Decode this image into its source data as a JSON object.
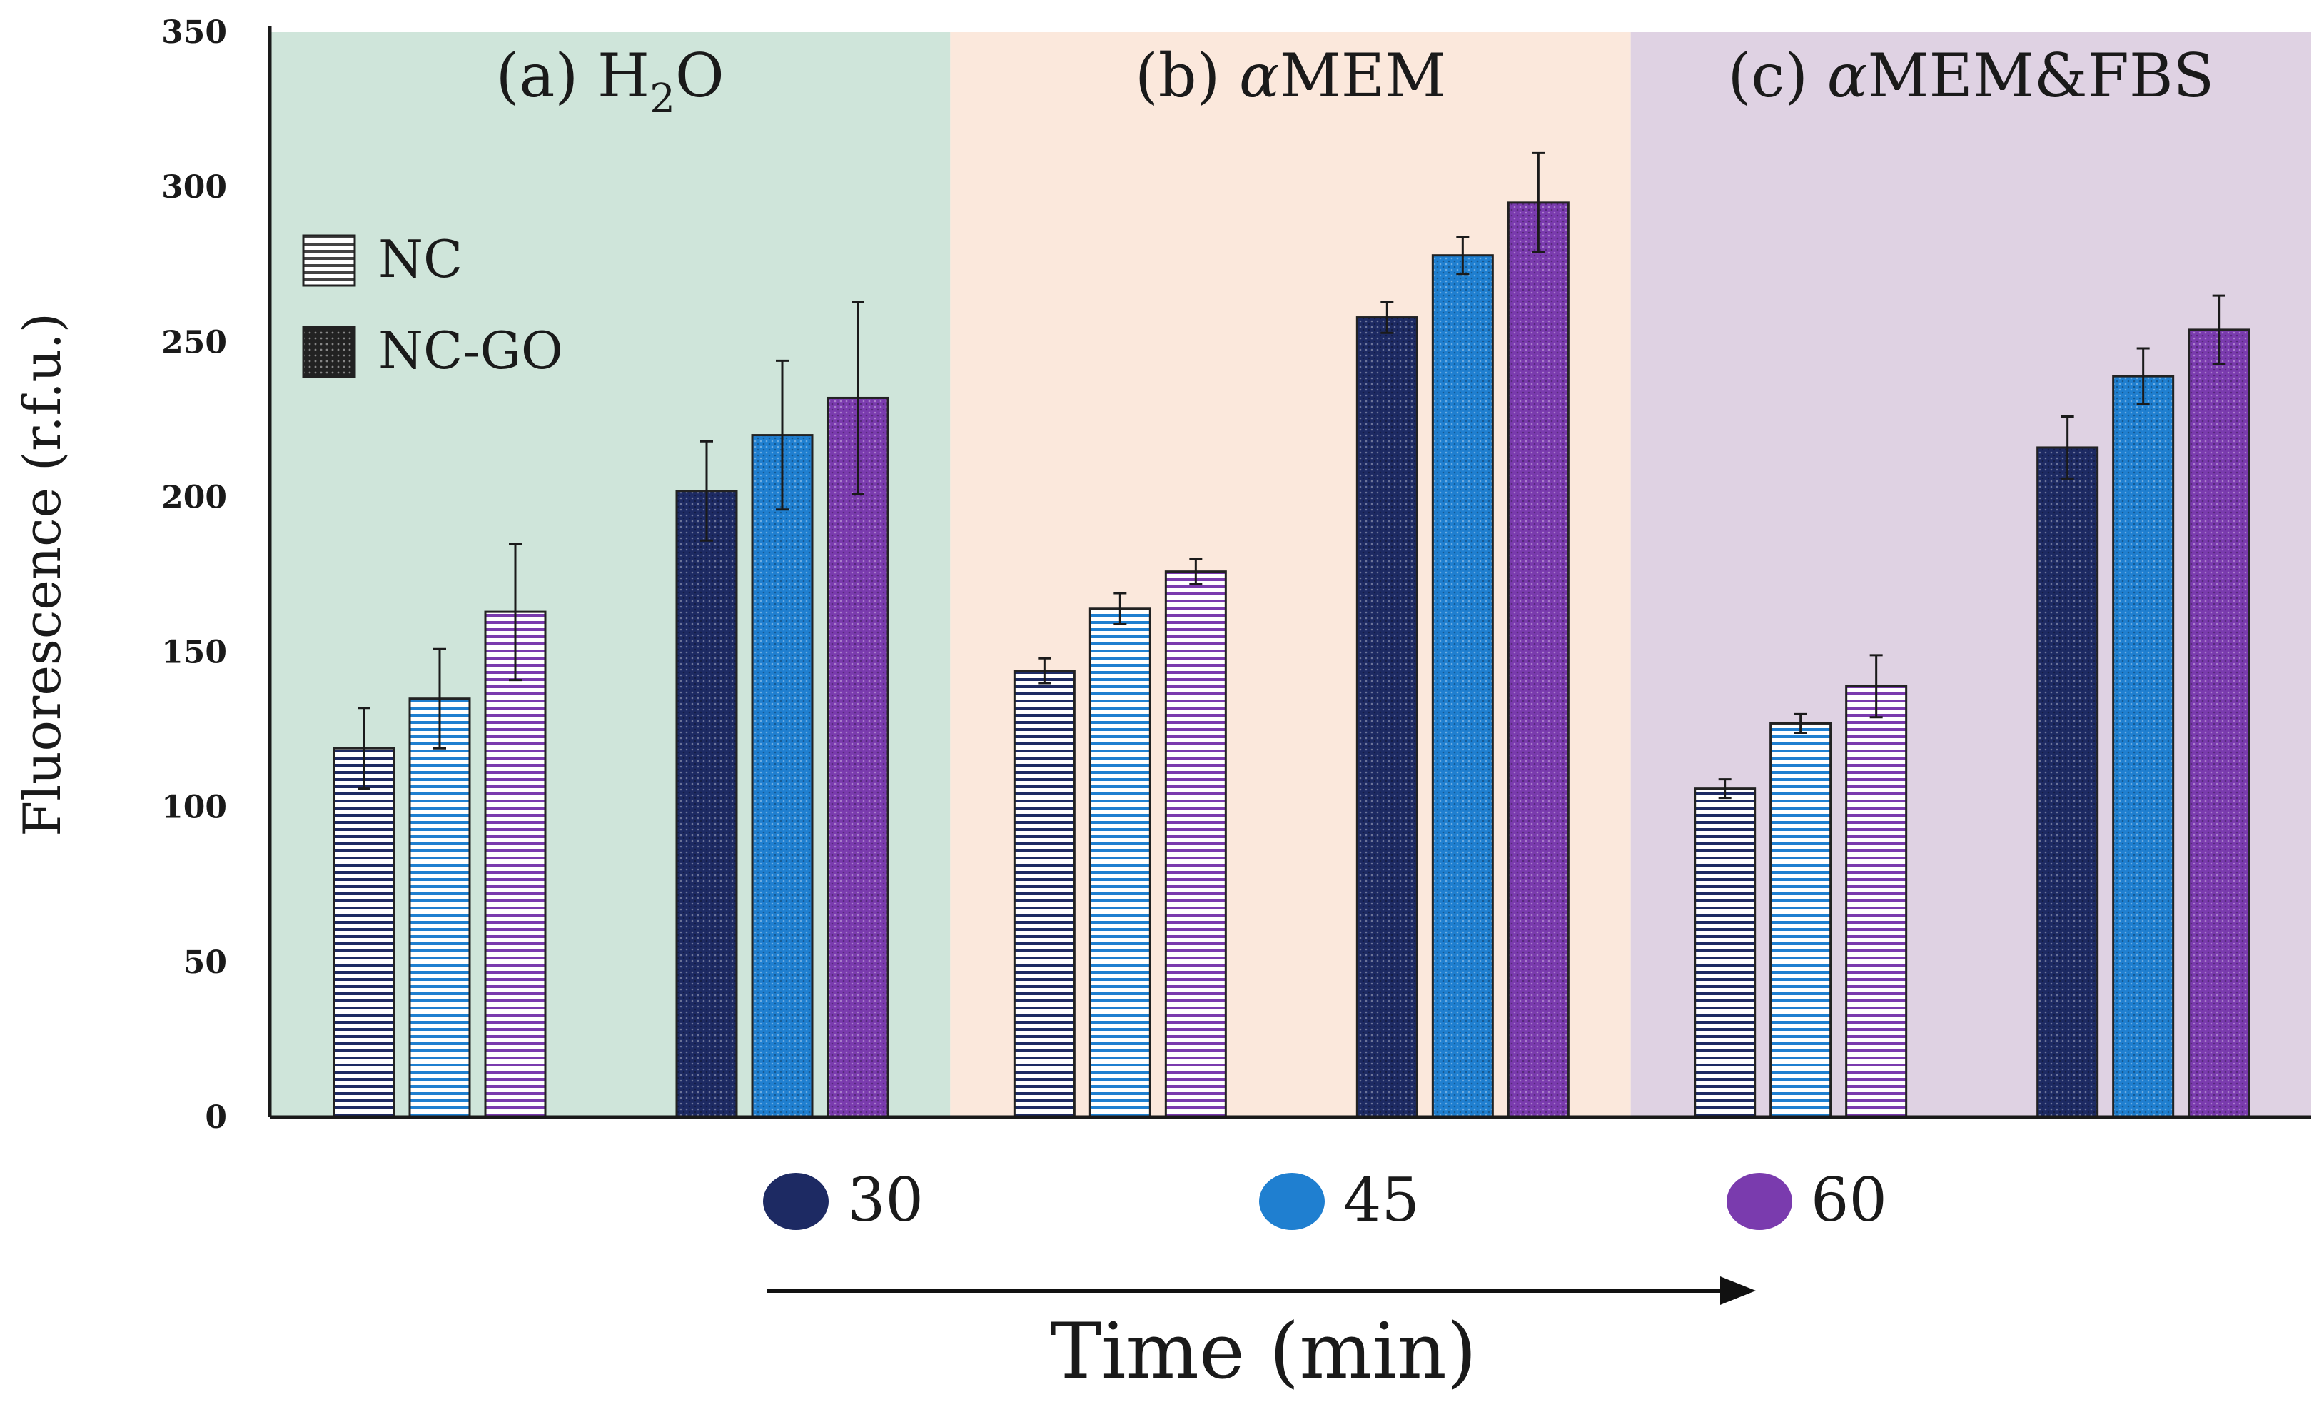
{
  "chart_data": {
    "type": "bar",
    "ylabel": "Fluorescence (r.f.u.)",
    "xlabel": "Time (min)",
    "ylim": [
      0,
      350
    ],
    "yticks": [
      "0",
      "50",
      "100",
      "150",
      "200",
      "250",
      "300",
      "350"
    ],
    "panels": [
      {
        "title_prefix": "(a) H",
        "title_sub": "2",
        "title_suffix": "O",
        "background": "#cfe5da",
        "groups": [
          {
            "name": "NC",
            "values": [
              119,
              135,
              163
            ],
            "errors": [
              13,
              16,
              22
            ]
          },
          {
            "name": "NC-GO",
            "values": [
              202,
              220,
              232
            ],
            "errors": [
              16,
              24,
              31
            ]
          }
        ]
      },
      {
        "title_prefix": "(b) ",
        "title_greek": "α",
        "title_suffix": "MEM",
        "background": "#fbe8dc",
        "groups": [
          {
            "name": "NC",
            "values": [
              144,
              164,
              176
            ],
            "errors": [
              4,
              5,
              4
            ]
          },
          {
            "name": "NC-GO",
            "values": [
              258,
              278,
              295
            ],
            "errors": [
              5,
              6,
              16
            ]
          }
        ]
      },
      {
        "title_prefix": "(c) ",
        "title_greek": "α",
        "title_suffix": "MEM&FBS",
        "background": "#dfd2e3",
        "groups": [
          {
            "name": "NC",
            "values": [
              106,
              127,
              139
            ],
            "errors": [
              3,
              3,
              10
            ]
          },
          {
            "name": "NC-GO",
            "values": [
              216,
              239,
              254
            ],
            "errors": [
              10,
              9,
              11
            ]
          }
        ]
      }
    ],
    "legend_materials": [
      {
        "label": "NC",
        "pattern": "stripes"
      },
      {
        "label": "NC-GO",
        "pattern": "dots"
      }
    ],
    "legend_time": [
      {
        "label": "30",
        "color": "#1d2a63"
      },
      {
        "label": "45",
        "color": "#1f7fd0"
      },
      {
        "label": "60",
        "color": "#7a3bae"
      }
    ]
  }
}
